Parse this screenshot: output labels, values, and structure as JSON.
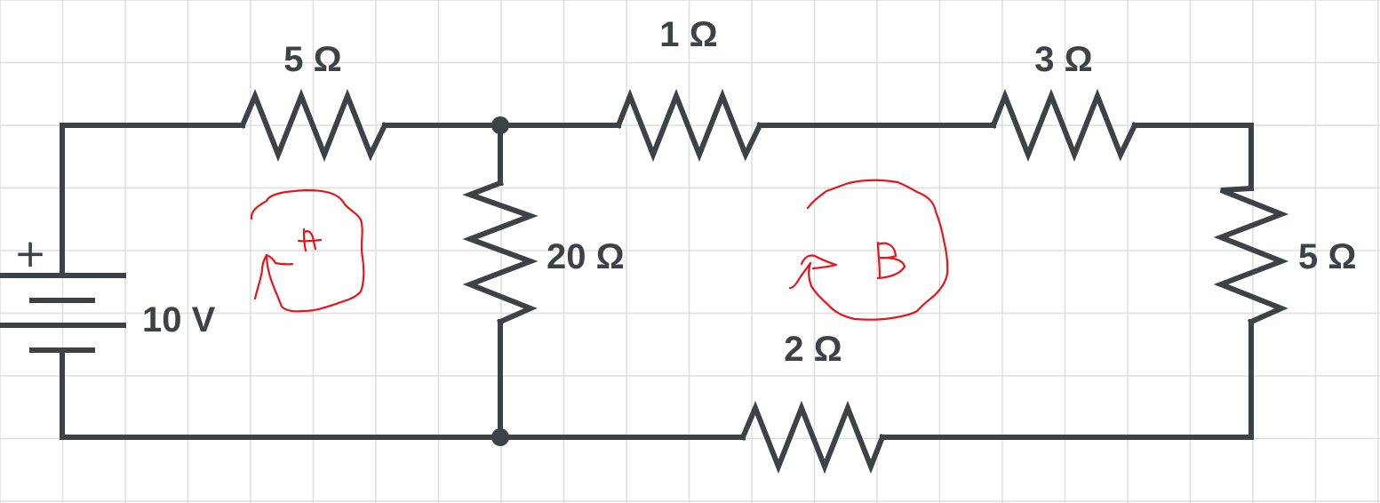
{
  "colors": {
    "wire": "#3c4245",
    "grid": "#dedede",
    "annotation": "#e8141c",
    "background": "#ffffff"
  },
  "source": {
    "voltage_label": "10 V",
    "polarity_symbol": "+"
  },
  "resistors": {
    "r_top_left": "5 Ω",
    "r_top_middle": "1 Ω",
    "r_top_right": "3 Ω",
    "r_shunt_middle": "20 Ω",
    "r_shunt_right": "5 Ω",
    "r_bottom": "2 Ω"
  },
  "annotations": {
    "loop_a_icon": "clockwise-loop-arrow-a",
    "loop_b_icon": "clockwise-loop-arrow-b"
  }
}
